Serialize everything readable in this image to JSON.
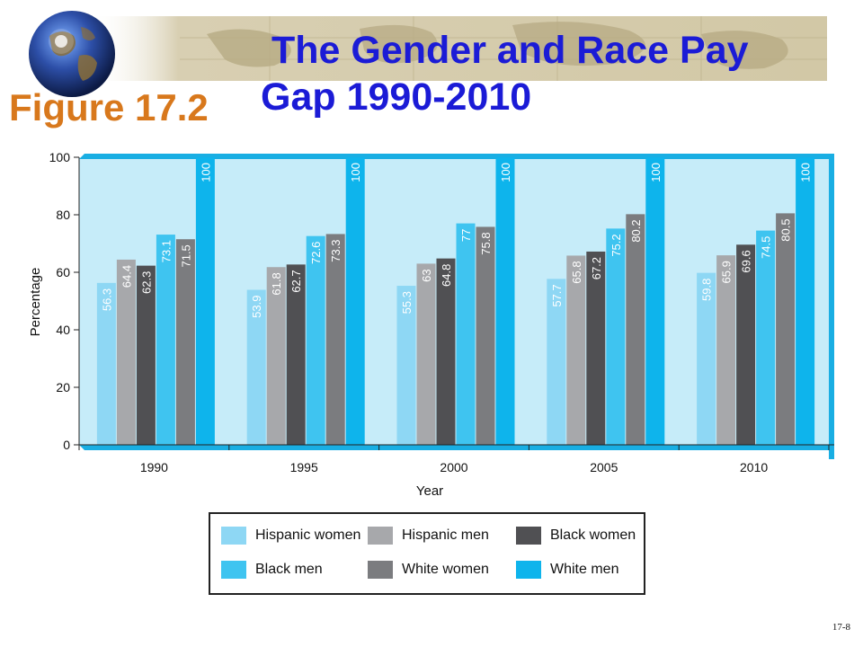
{
  "header": {
    "title_line1": "The Gender and Race Pay",
    "title_line2": "Gap 1990-2010",
    "figure_label": "Figure 17.2"
  },
  "colors": {
    "title": "#1b1bd6",
    "figure_label": "#d8781c",
    "plot_background": "#c6ecf9",
    "plot_shadow": "#19aee3"
  },
  "chart_data": {
    "type": "bar",
    "title": "",
    "xlabel": "Year",
    "ylabel": "Percentage",
    "ylim": [
      0,
      100
    ],
    "yticks": [
      0,
      20,
      40,
      60,
      80,
      100
    ],
    "grid": false,
    "legend_position": "bottom",
    "categories": [
      "1990",
      "1995",
      "2000",
      "2005",
      "2010"
    ],
    "series": [
      {
        "name": "Hispanic women",
        "color": "#8ed7f4",
        "values": [
          56.3,
          53.9,
          55.3,
          57.7,
          59.8
        ]
      },
      {
        "name": "Hispanic men",
        "color": "#a7a8ab",
        "values": [
          64.4,
          61.8,
          63.0,
          65.8,
          65.9
        ]
      },
      {
        "name": "Black women",
        "color": "#505053",
        "values": [
          62.3,
          62.7,
          64.8,
          67.2,
          69.6
        ]
      },
      {
        "name": "Black men",
        "color": "#3fc4f0",
        "values": [
          73.1,
          72.6,
          77.0,
          75.2,
          74.5
        ]
      },
      {
        "name": "White women",
        "color": "#7b7c7f",
        "values": [
          71.5,
          73.3,
          75.8,
          80.2,
          80.5
        ]
      },
      {
        "name": "White men",
        "color": "#0eb4ec",
        "values": [
          100,
          100,
          100,
          100,
          100
        ]
      }
    ]
  },
  "footer": {
    "slide_number": "17-8"
  }
}
